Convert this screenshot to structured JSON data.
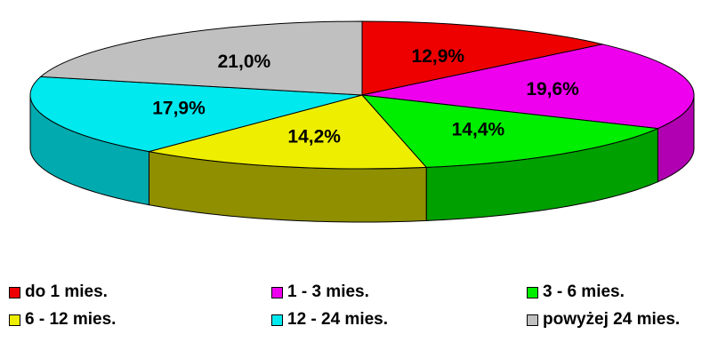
{
  "chart_data": {
    "type": "pie",
    "title": "",
    "style": "3d",
    "legend_position": "bottom",
    "slices": [
      {
        "label": "do 1 mies.",
        "value": 12.9,
        "display": "12,9%",
        "color": "#ee0000"
      },
      {
        "label": "1 - 3 mies.",
        "value": 19.6,
        "display": "19,6%",
        "color": "#ee00ee"
      },
      {
        "label": "3 - 6 mies.",
        "value": 14.4,
        "display": "14,4%",
        "color": "#00ee00"
      },
      {
        "label": "6 - 12 mies.",
        "value": 14.2,
        "display": "14,2%",
        "color": "#eeee00"
      },
      {
        "label": "12 - 24 mies.",
        "value": 17.9,
        "display": "17,9%",
        "color": "#00e9ee"
      },
      {
        "label": "powyżej 24 mies.",
        "value": 21.0,
        "display": "21,0%",
        "color": "#c0c0c0"
      }
    ]
  }
}
